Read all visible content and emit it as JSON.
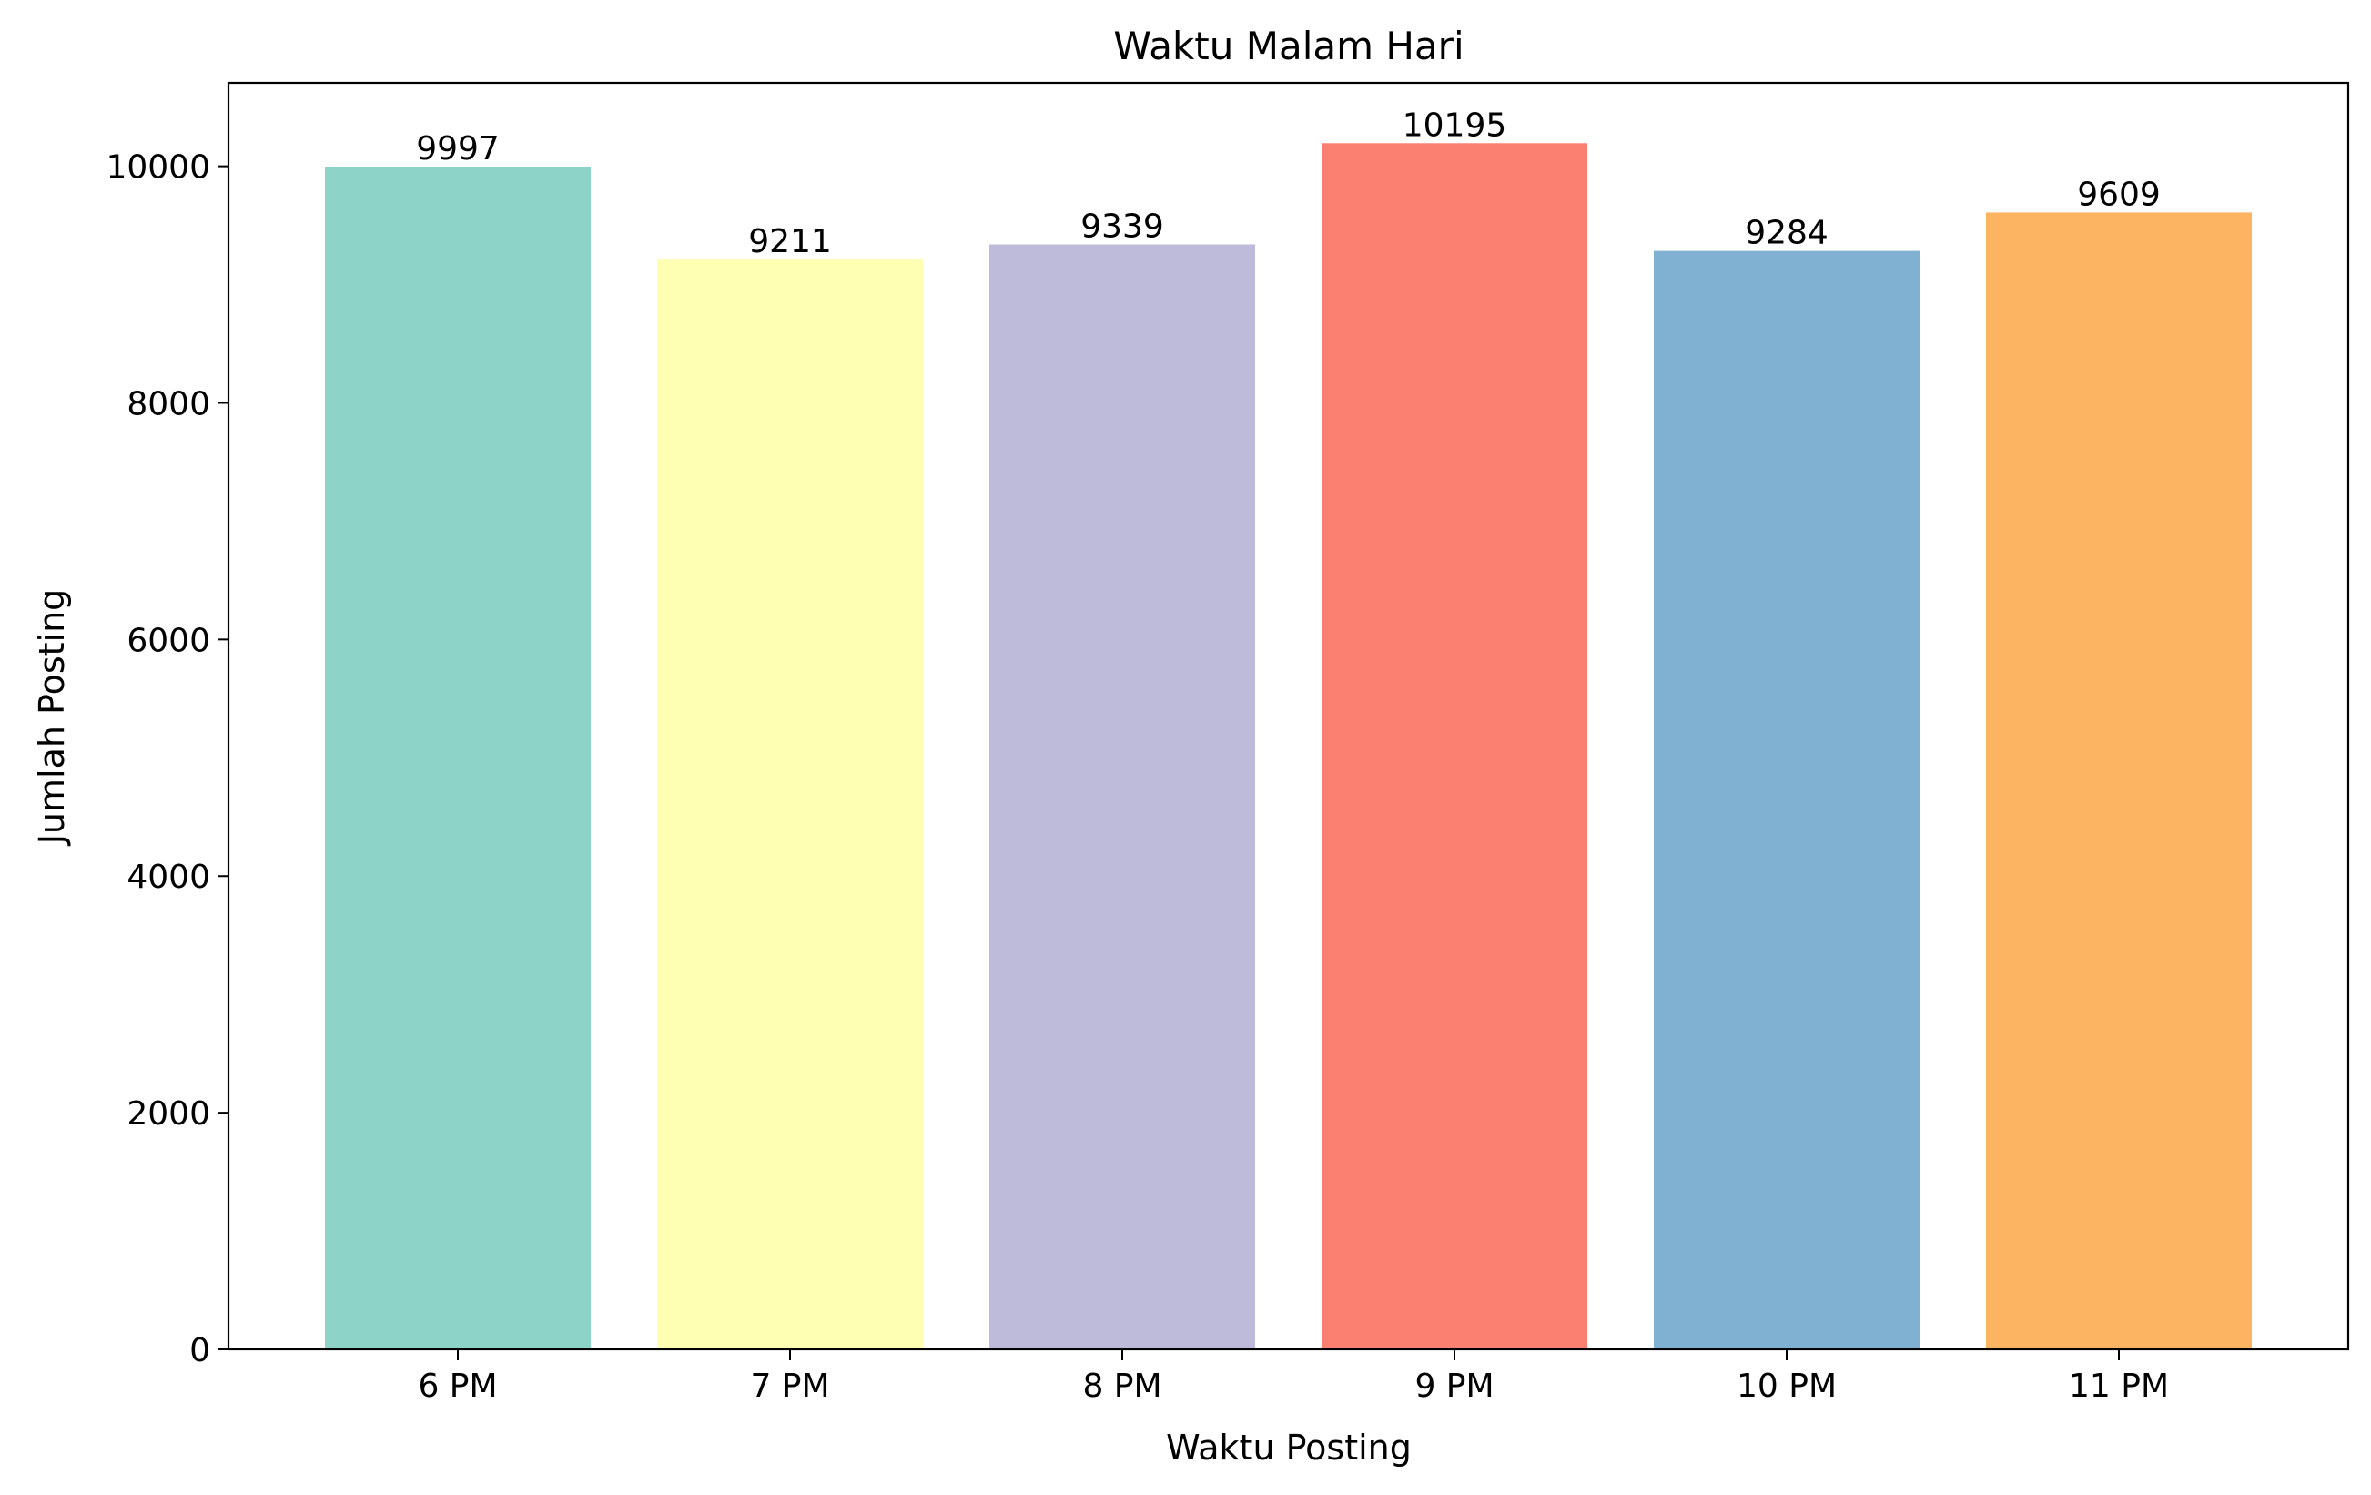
{
  "chart_data": {
    "type": "bar",
    "title": "Waktu Malam Hari",
    "xlabel": "Waktu Posting",
    "ylabel": "Jumlah Posting",
    "categories": [
      "6 PM",
      "7 PM",
      "8 PM",
      "9 PM",
      "10 PM",
      "11 PM"
    ],
    "values": [
      9997,
      9211,
      9339,
      10195,
      9284,
      9609
    ],
    "data_labels": [
      "9997",
      "9211",
      "9339",
      "10195",
      "9284",
      "9609"
    ],
    "colors": [
      "#8dd3c7",
      "#ffffb3",
      "#bebada",
      "#fb8072",
      "#80b1d3",
      "#fdb462"
    ],
    "yticks": [
      0,
      2000,
      4000,
      6000,
      8000,
      10000
    ],
    "ytick_labels": [
      "0",
      "2000",
      "4000",
      "6000",
      "8000",
      "10000"
    ],
    "ylim": [
      0,
      10705
    ],
    "grid": false,
    "legend": "none"
  }
}
